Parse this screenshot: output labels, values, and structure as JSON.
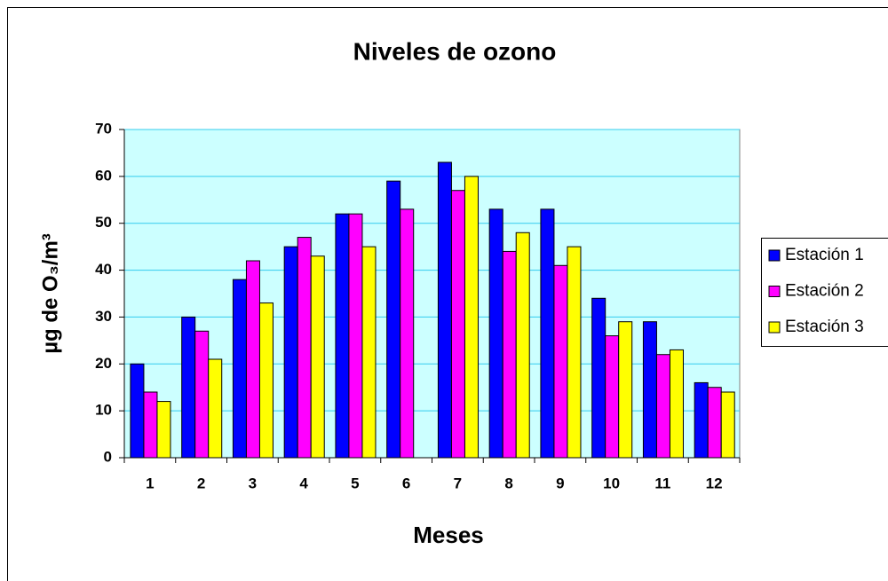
{
  "chart_data": {
    "type": "bar",
    "title": "Niveles de ozono",
    "xlabel": "Meses",
    "ylabel": "µg de O₃/m³",
    "categories": [
      "1",
      "2",
      "3",
      "4",
      "5",
      "6",
      "7",
      "8",
      "9",
      "10",
      "11",
      "12"
    ],
    "series": [
      {
        "name": "Estación 1",
        "color": "#0000ff",
        "values": [
          20,
          30,
          38,
          45,
          52,
          59,
          63,
          53,
          53,
          34,
          29,
          16
        ]
      },
      {
        "name": "Estación 2",
        "color": "#ff00ff",
        "values": [
          14,
          27,
          42,
          47,
          52,
          53,
          57,
          44,
          41,
          26,
          22,
          15
        ]
      },
      {
        "name": "Estación 3",
        "color": "#ffff00",
        "values": [
          12,
          21,
          33,
          43,
          45,
          null,
          60,
          48,
          45,
          29,
          23,
          14
        ]
      }
    ],
    "ylim": [
      0,
      70
    ],
    "yticks": [
      0,
      10,
      20,
      30,
      40,
      50,
      60,
      70
    ],
    "grid": true,
    "legend": "right",
    "plot_background": "#ccffff"
  }
}
